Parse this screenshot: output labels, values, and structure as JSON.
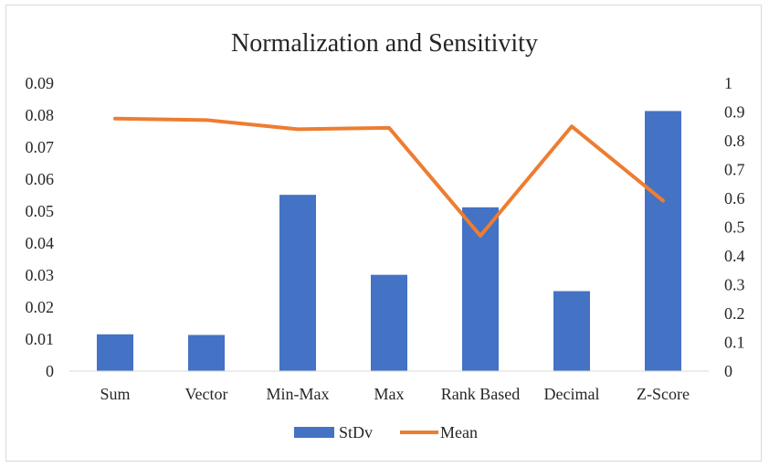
{
  "chart_data": {
    "type": "bar",
    "title": "Normalization and Sensitivity",
    "categories": [
      "Sum",
      "Vector",
      "Min-Max",
      "Max",
      "Rank Based",
      "Decimal",
      "Z-Score"
    ],
    "series": [
      {
        "name": "StDv",
        "type": "bar",
        "axis": "left",
        "color": "#4472C4",
        "values": [
          0.0115,
          0.0113,
          0.0551,
          0.0301,
          0.0512,
          0.025,
          0.0813
        ]
      },
      {
        "name": "Mean",
        "type": "line",
        "axis": "right",
        "color": "#ED7D31",
        "values": [
          0.877,
          0.872,
          0.84,
          0.845,
          0.47,
          0.85,
          0.592
        ]
      }
    ],
    "y_left": {
      "ylim": [
        0,
        0.09
      ],
      "ticks": [
        "0",
        "0.01",
        "0.02",
        "0.03",
        "0.04",
        "0.05",
        "0.06",
        "0.07",
        "0.08",
        "0.09"
      ]
    },
    "y_right": {
      "ylim": [
        0,
        1
      ],
      "ticks": [
        "0",
        "0.1",
        "0.2",
        "0.3",
        "0.4",
        "0.5",
        "0.6",
        "0.7",
        "0.8",
        "0.9",
        "1"
      ]
    },
    "grid": false,
    "legend_position": "bottom"
  }
}
